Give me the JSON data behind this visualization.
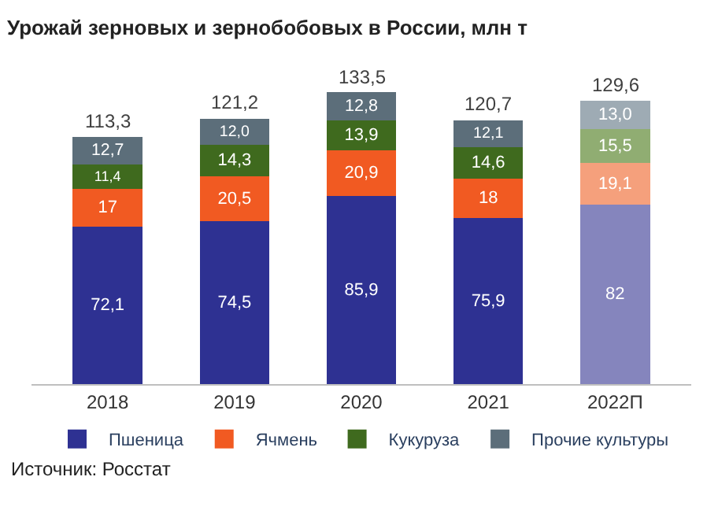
{
  "chart_data": {
    "type": "bar",
    "stacked": true,
    "title": "Урожай зерновых и зернобобовых в России, млн т",
    "categories": [
      "2018",
      "2019",
      "2020",
      "2021",
      "2022П"
    ],
    "series": [
      {
        "name": "Пшеница",
        "colors": [
          "#2e3192",
          "#2e3192",
          "#2e3192",
          "#2e3192",
          "#8585bd"
        ],
        "values": [
          72.1,
          74.5,
          85.9,
          75.9,
          82
        ],
        "value_labels": [
          "72,1",
          "74,5",
          "85,9",
          "75,9",
          "82"
        ]
      },
      {
        "name": "Ячмень",
        "colors": [
          "#f15a22",
          "#f15a22",
          "#f15a22",
          "#f15a22",
          "#f5a07c"
        ],
        "values": [
          17,
          20.5,
          20.9,
          18,
          19.1
        ],
        "value_labels": [
          "17",
          "20,5",
          "20,9",
          "18",
          "19,1"
        ]
      },
      {
        "name": "Кукуруза",
        "colors": [
          "#3f6a1e",
          "#3f6a1e",
          "#3f6a1e",
          "#3f6a1e",
          "#90ad72"
        ],
        "values": [
          11.4,
          14.3,
          13.9,
          14.6,
          15.5
        ],
        "value_labels": [
          "11,4",
          "14,3",
          "13,9",
          "14,6",
          "15,5"
        ]
      },
      {
        "name": "Прочие культуры",
        "colors": [
          "#5c6e7a",
          "#5c6e7a",
          "#5c6e7a",
          "#5c6e7a",
          "#9eabb4"
        ],
        "values": [
          12.7,
          12.0,
          12.8,
          12.1,
          13.0
        ],
        "value_labels": [
          "12,7",
          "12,0",
          "12,8",
          "12,1",
          "13,0"
        ]
      }
    ],
    "totals": [
      "113,3",
      "121,2",
      "133,5",
      "120,7",
      "129,6"
    ],
    "legend": "bottom",
    "tick_labels": "x",
    "annotations": [
      "Источник: Росстат"
    ]
  }
}
